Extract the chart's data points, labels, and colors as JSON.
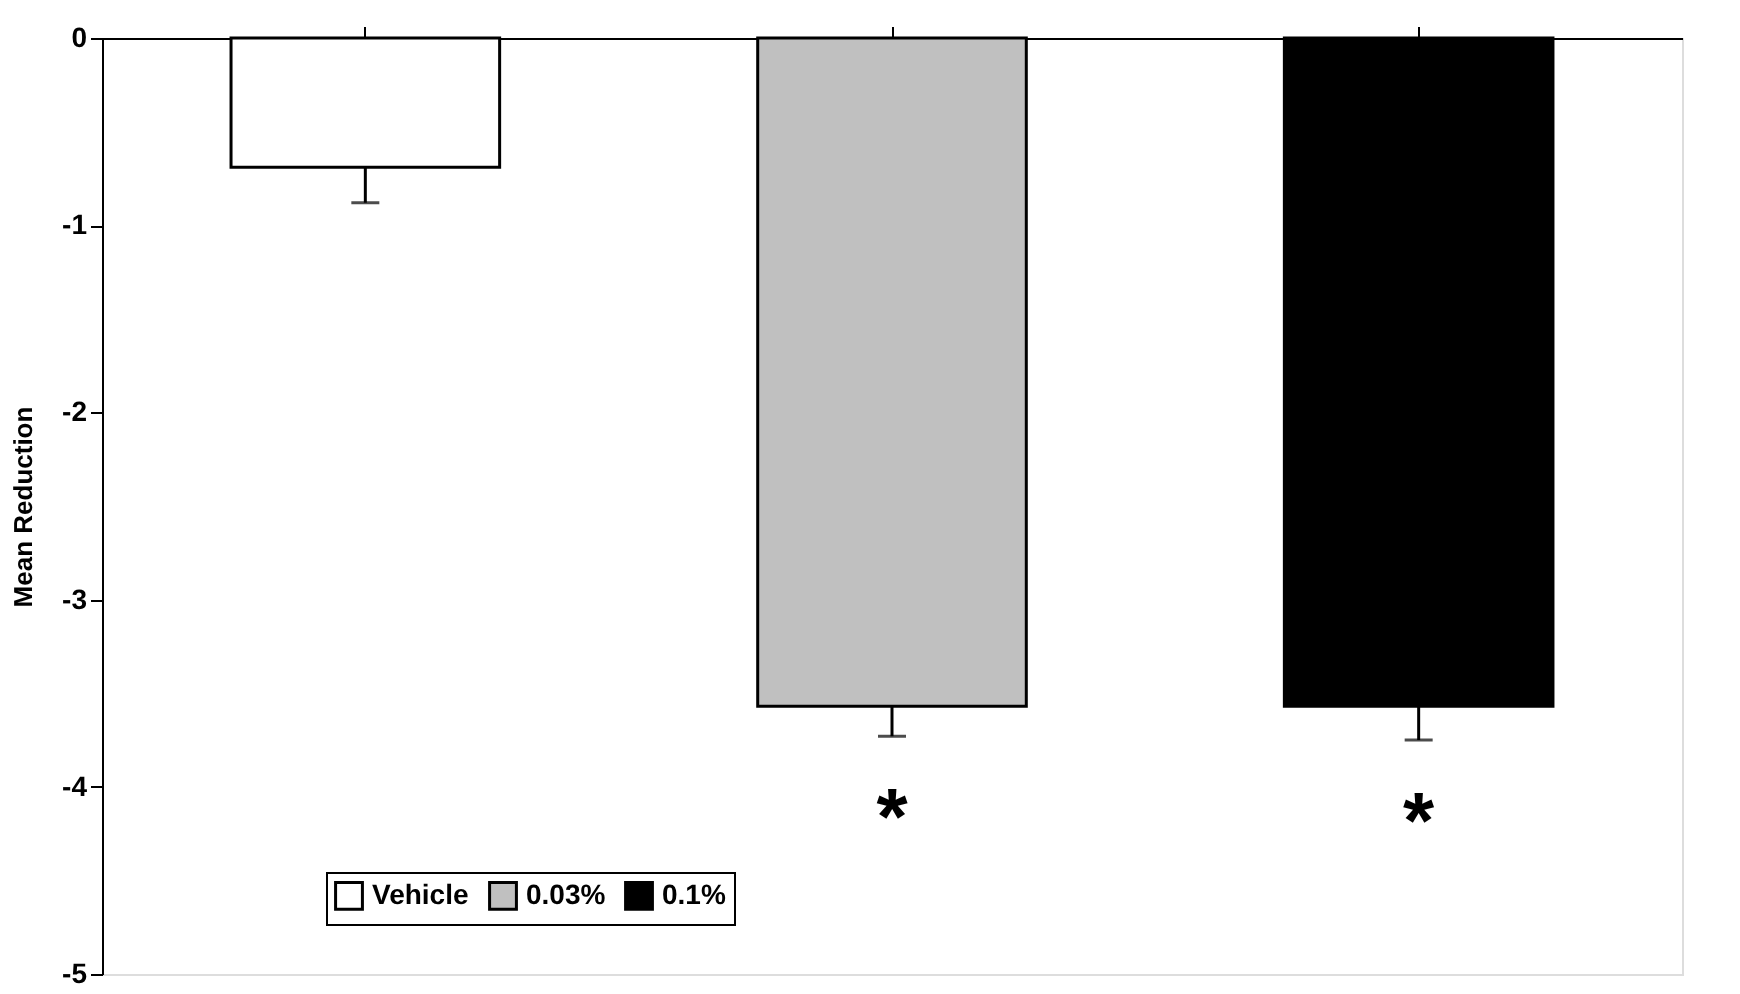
{
  "chart_data": {
    "type": "bar",
    "ylabel": "Mean Reduction",
    "categories": [
      null,
      null,
      null
    ],
    "series": [
      {
        "name": "Vehicle",
        "color": "#ffffff",
        "values": [
          -0.69,
          null,
          null
        ],
        "errors": [
          [
            -0.88,
            -0.69
          ],
          null,
          null
        ]
      },
      {
        "name": "0.03%",
        "color": "#c0c0c0",
        "values": [
          null,
          -3.57,
          null
        ],
        "errors": [
          null,
          [
            -3.73,
            -3.57
          ],
          null
        ],
        "value_labels": [
          null,
          "*",
          null
        ]
      },
      {
        "name": "0.1%",
        "color": "#000000",
        "values": [
          null,
          null,
          -3.57
        ],
        "errors": [
          null,
          null,
          [
            -3.75,
            -3.57
          ]
        ],
        "value_labels": [
          null,
          null,
          "*"
        ]
      }
    ],
    "ylim": [
      -5,
      0
    ],
    "yticks": [
      -5,
      -4,
      -3,
      -2,
      -1,
      0
    ],
    "grid": false,
    "legend": "bottom",
    "tick_labels": "y"
  }
}
